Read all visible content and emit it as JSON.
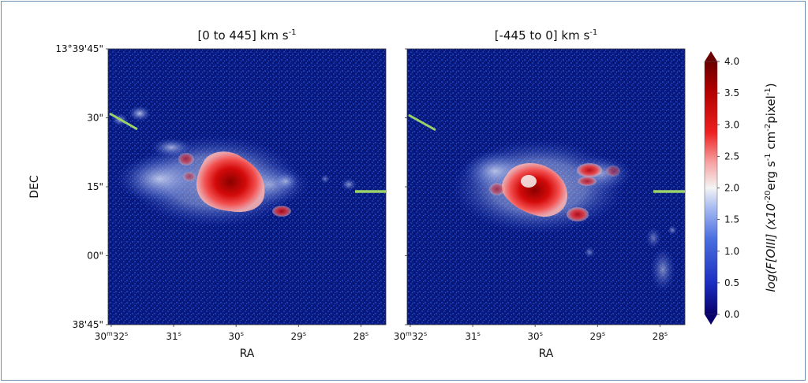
{
  "chart_data": [
    {
      "type": "heatmap",
      "title": "[0 to 445] km s",
      "title_sup": "-1",
      "xlabel": "RA",
      "ylabel": "DEC",
      "xticks": [
        {
          "value": 32,
          "prefix": "30",
          "prefix_sup": "m",
          "label": "32",
          "sup": "s"
        },
        {
          "value": 31,
          "prefix": "",
          "prefix_sup": "",
          "label": "31",
          "sup": "s"
        },
        {
          "value": 30,
          "prefix": "",
          "prefix_sup": "",
          "label": "30",
          "sup": "s"
        },
        {
          "value": 29,
          "prefix": "",
          "prefix_sup": "",
          "label": "29",
          "sup": "s"
        },
        {
          "value": 28,
          "prefix": "",
          "prefix_sup": "",
          "label": "28",
          "sup": "s"
        }
      ],
      "yticks": [
        {
          "value": 45,
          "label": "13°39'45\""
        },
        {
          "value": 30,
          "label": "30\""
        },
        {
          "value": 15,
          "label": "15\""
        },
        {
          "value": 0,
          "label": "00\""
        },
        {
          "value": -15,
          "label": "38'45\""
        }
      ],
      "xlim": [
        32.05,
        27.6
      ],
      "ylim": [
        -15,
        45
      ],
      "markers": [
        "green slit line (upper left)",
        "green slit line (right)"
      ]
    },
    {
      "type": "heatmap",
      "title": "[-445 to 0] km s",
      "title_sup": "-1",
      "xlabel": "RA",
      "ylabel": "",
      "xticks": [
        {
          "value": 32,
          "prefix": "30",
          "prefix_sup": "m",
          "label": "32",
          "sup": "s"
        },
        {
          "value": 31,
          "prefix": "",
          "prefix_sup": "",
          "label": "31",
          "sup": "s"
        },
        {
          "value": 30,
          "prefix": "",
          "prefix_sup": "",
          "label": "30",
          "sup": "s"
        },
        {
          "value": 29,
          "prefix": "",
          "prefix_sup": "",
          "label": "29",
          "sup": "s"
        },
        {
          "value": 28,
          "prefix": "",
          "prefix_sup": "",
          "label": "28",
          "sup": "s"
        }
      ],
      "xlim": [
        32.05,
        27.6
      ],
      "ylim": [
        -15,
        45
      ],
      "markers": [
        "green slit line (upper left)",
        "green slit line (right)"
      ]
    }
  ],
  "colorbar": {
    "label_main": "log(F[OIII]  (x10",
    "label_exp1": "-20",
    "label_mid": "erg s",
    "label_exp2": "-1",
    "label_mid2": " cm",
    "label_exp3": "-2",
    "label_mid3": "pixel",
    "label_exp4": "-1",
    "label_end": ")",
    "range": [
      0,
      4
    ],
    "ticks": [
      "4.0",
      "3.5",
      "3.0",
      "2.5",
      "2.0",
      "1.5",
      "1.0",
      "0.5",
      "0.0"
    ],
    "colormap": [
      "#08006b",
      "#1a2dbf",
      "#4a6fe0",
      "#a6baf2",
      "#f4f4f4",
      "#f7a3a3",
      "#ee2020",
      "#b30000",
      "#6b0000"
    ]
  },
  "colors": {
    "background_map": "#07187f",
    "slit": "#9bd26a",
    "frame": "#6f8fb1"
  }
}
